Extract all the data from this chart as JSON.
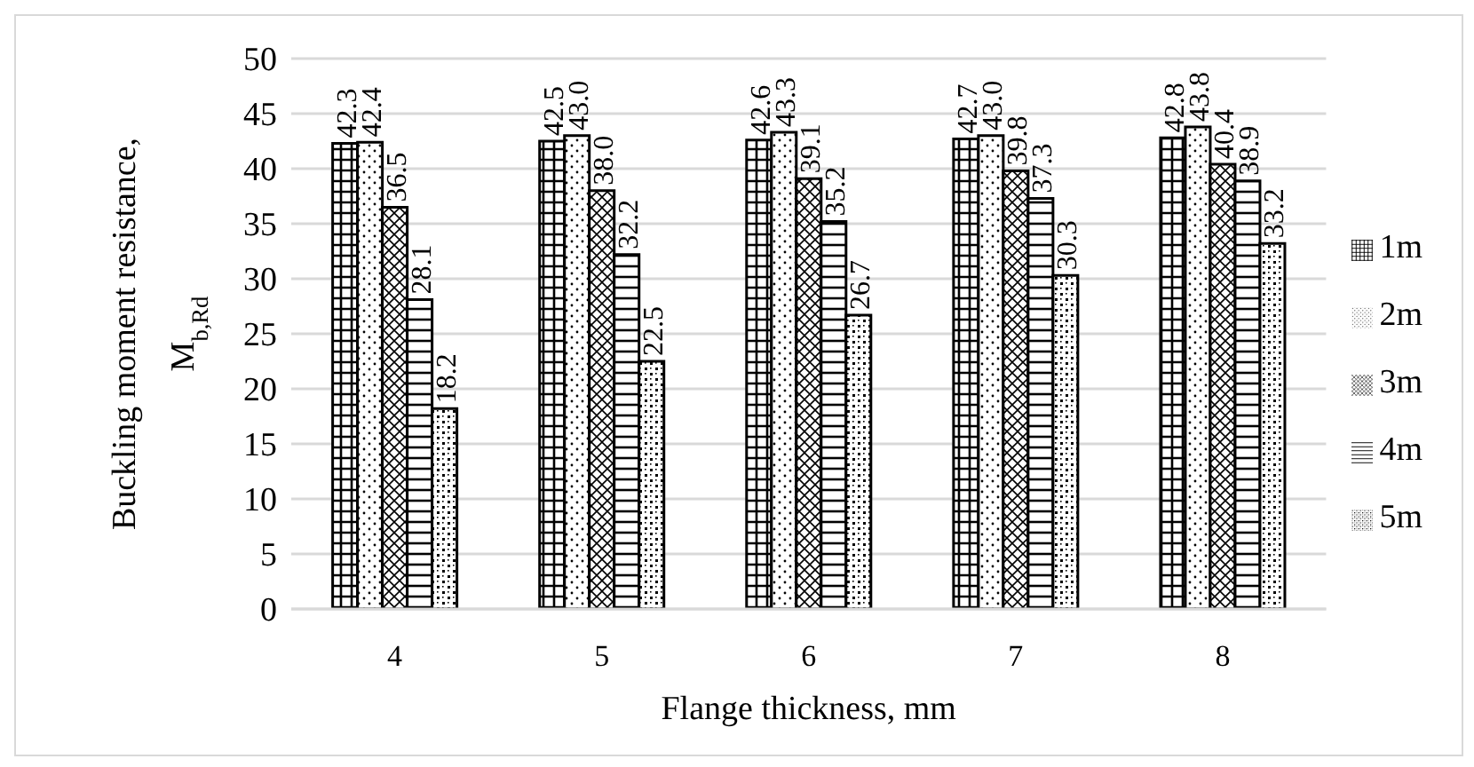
{
  "chart_data": {
    "type": "bar",
    "xlabel": "Flange thickness, mm",
    "ylabel": "Buckling moment resistance, M$_{b,Rd}$",
    "categories": [
      "4",
      "5",
      "6",
      "7",
      "8"
    ],
    "series": [
      {
        "name": "1m",
        "color": "#000000",
        "values": [
          42.3,
          42.5,
          42.6,
          42.7,
          42.8
        ],
        "value_labels": [
          "42.3",
          "42.5",
          "42.6",
          "42.7",
          "42.8"
        ]
      },
      {
        "name": "2m",
        "color": "#000000",
        "values": [
          42.4,
          43.0,
          43.3,
          43.0,
          43.8
        ],
        "value_labels": [
          "42.4",
          "43.0",
          "43.3",
          "43.0",
          "43.8"
        ]
      },
      {
        "name": "3m",
        "color": "#000000",
        "values": [
          36.5,
          38.0,
          39.1,
          39.8,
          40.4
        ],
        "value_labels": [
          "36.5",
          "38.0",
          "39.1",
          "39.8",
          "40.4"
        ]
      },
      {
        "name": "4m",
        "color": "#000000",
        "values": [
          28.1,
          32.2,
          35.2,
          37.3,
          38.9
        ],
        "value_labels": [
          "28.1",
          "32.2",
          "35.2",
          "37.3",
          "38.9"
        ]
      },
      {
        "name": "5m",
        "color": "#000000",
        "values": [
          18.2,
          22.5,
          26.7,
          30.3,
          33.2
        ],
        "value_labels": [
          "18.2",
          "22.5",
          "26.7",
          "30.3",
          "33.2"
        ]
      }
    ],
    "ylim": [
      0,
      50
    ],
    "yticks": [
      0,
      5,
      10,
      15,
      20,
      25,
      30,
      35,
      40,
      45,
      50
    ],
    "grid": "y",
    "legend": "right"
  }
}
